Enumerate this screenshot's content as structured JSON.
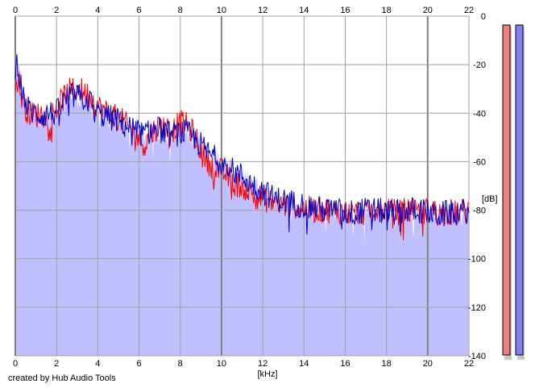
{
  "credit": "created by Hub Audio Tools",
  "colors": {
    "fill": "#c0c0ff",
    "channel_left": "#ff0000",
    "channel_right": "#0000cc",
    "meter_left": "#f08080",
    "meter_right": "#8080f0",
    "grid": "#a0a0a0"
  },
  "chart_data": {
    "type": "line",
    "xlabel": "[kHz]",
    "ylabel": "[dB]",
    "xlim": [
      0,
      22
    ],
    "ylim": [
      -140,
      0
    ],
    "x_ticks": [
      "0",
      "2",
      "4",
      "6",
      "8",
      "10",
      "12",
      "14",
      "16",
      "18",
      "20",
      "22"
    ],
    "y_ticks": [
      "0",
      "-20",
      "-40",
      "-60",
      "-80",
      "-100",
      "-120",
      "-140"
    ],
    "grid": true,
    "series": [
      {
        "color": "#ff0000",
        "x": [
          0,
          0.1,
          0.2,
          0.3,
          0.5,
          0.7,
          1.0,
          1.3,
          1.6,
          2.0,
          2.3,
          2.6,
          3.0,
          3.3,
          3.6,
          4.0,
          4.3,
          4.6,
          5.0,
          5.3,
          5.6,
          6.0,
          6.3,
          6.6,
          7.0,
          7.3,
          7.6,
          8.0,
          8.3,
          8.6,
          9.0,
          9.3,
          9.6,
          10.0,
          10.3,
          10.6,
          11.0,
          11.3,
          11.6,
          12.0,
          12.5,
          13.0,
          13.5,
          14.0,
          14.5,
          15.0,
          15.5,
          16.0,
          16.5,
          17.0,
          17.5,
          18.0,
          18.5,
          19.0,
          19.5,
          20.0,
          20.5,
          21.0,
          21.5,
          22.0
        ],
        "y": [
          -30,
          -26,
          -28,
          -33,
          -38,
          -40,
          -41,
          -40,
          -42,
          -38,
          -34,
          -31,
          -30,
          -31,
          -33,
          -37,
          -39,
          -40,
          -42,
          -44,
          -47,
          -50,
          -53,
          -48,
          -45,
          -46,
          -47,
          -44,
          -45,
          -48,
          -55,
          -60,
          -62,
          -64,
          -66,
          -69,
          -70,
          -72,
          -74,
          -75,
          -77,
          -78,
          -78,
          -79,
          -80,
          -80,
          -80,
          -81,
          -81,
          -81,
          -80,
          -80,
          -81,
          -80,
          -81,
          -80,
          -81,
          -82,
          -81,
          -80
        ]
      },
      {
        "color": "#0000cc",
        "x": [
          0,
          0.1,
          0.2,
          0.3,
          0.5,
          0.7,
          1.0,
          1.3,
          1.6,
          2.0,
          2.3,
          2.6,
          3.0,
          3.3,
          3.6,
          4.0,
          4.3,
          4.6,
          5.0,
          5.3,
          5.6,
          6.0,
          6.3,
          6.6,
          7.0,
          7.3,
          7.6,
          8.0,
          8.3,
          8.6,
          9.0,
          9.3,
          9.6,
          10.0,
          10.3,
          10.6,
          11.0,
          11.3,
          11.6,
          12.0,
          12.5,
          13.0,
          13.5,
          14.0,
          14.5,
          15.0,
          15.5,
          16.0,
          16.5,
          17.0,
          17.5,
          18.0,
          18.5,
          19.0,
          19.5,
          20.0,
          20.5,
          21.0,
          21.5,
          22.0
        ],
        "y": [
          -22,
          -18,
          -24,
          -30,
          -36,
          -39,
          -40,
          -41,
          -40,
          -40,
          -36,
          -33,
          -33,
          -34,
          -35,
          -40,
          -41,
          -42,
          -43,
          -45,
          -46,
          -48,
          -49,
          -47,
          -47,
          -48,
          -49,
          -48,
          -48,
          -50,
          -53,
          -56,
          -58,
          -60,
          -62,
          -64,
          -66,
          -68,
          -70,
          -72,
          -75,
          -76,
          -77,
          -78,
          -79,
          -80,
          -80,
          -81,
          -81,
          -80,
          -80,
          -81,
          -81,
          -80,
          -80,
          -81,
          -82,
          -81,
          -81,
          -80
        ]
      }
    ],
    "meters": {
      "left": -140,
      "right": -140
    }
  }
}
